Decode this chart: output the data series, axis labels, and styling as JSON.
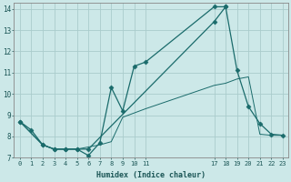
{
  "xlabel": "Humidex (Indice chaleur)",
  "background_color": "#cce8e8",
  "grid_color": "#aacccc",
  "line_color": "#1a6b6b",
  "xlim": [
    -0.5,
    23.5
  ],
  "ylim": [
    7,
    14.3
  ],
  "xticks": [
    0,
    1,
    2,
    3,
    4,
    5,
    6,
    7,
    8,
    9,
    10,
    11,
    17,
    18,
    19,
    20,
    21,
    22,
    23
  ],
  "yticks": [
    7,
    8,
    9,
    10,
    11,
    12,
    13,
    14
  ],
  "line1": {
    "x": [
      0,
      1,
      2,
      3,
      4,
      5,
      6,
      7,
      8,
      9,
      10,
      11,
      17,
      18
    ],
    "y": [
      8.7,
      8.3,
      7.6,
      7.4,
      7.4,
      7.4,
      7.1,
      7.7,
      10.3,
      9.2,
      11.3,
      11.5,
      14.1,
      14.1
    ]
  },
  "line2": {
    "x": [
      0,
      2,
      3,
      4,
      5,
      6,
      17,
      18,
      19,
      20,
      21,
      22,
      23
    ],
    "y": [
      8.7,
      7.6,
      7.4,
      7.4,
      7.4,
      7.4,
      13.4,
      14.1,
      11.1,
      9.4,
      8.6,
      8.1,
      8.05
    ]
  },
  "line3": {
    "x": [
      0,
      2,
      3,
      4,
      5,
      6,
      7,
      8,
      9,
      10,
      11,
      17,
      18,
      19,
      20,
      21,
      22,
      23
    ],
    "y": [
      8.7,
      7.6,
      7.4,
      7.4,
      7.4,
      7.5,
      7.6,
      7.75,
      8.9,
      9.1,
      9.3,
      10.4,
      10.5,
      10.7,
      10.8,
      8.1,
      8.05,
      8.05
    ]
  }
}
